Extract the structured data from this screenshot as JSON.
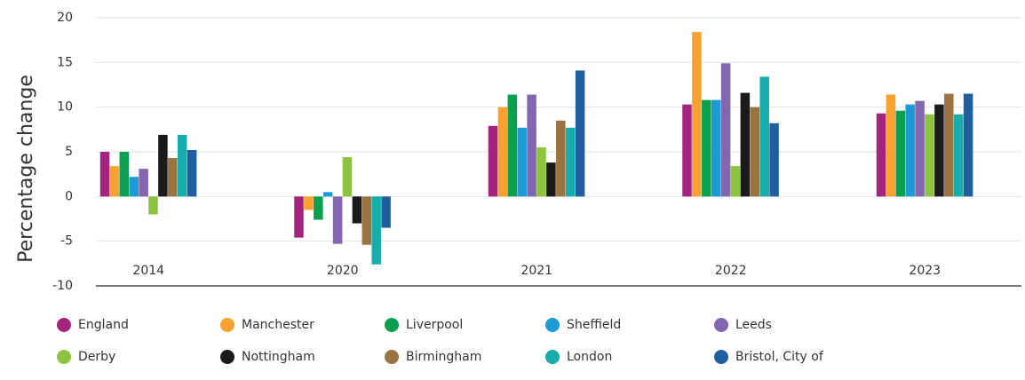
{
  "chart_data": {
    "type": "bar",
    "y_label": "Percentage change",
    "categories": [
      "2014",
      "2020",
      "2021",
      "2022",
      "2023"
    ],
    "series": [
      {
        "name": "England",
        "color": "#a3237f",
        "values": [
          5,
          -4.6,
          7.9,
          10.3,
          9.3
        ]
      },
      {
        "name": "Manchester",
        "color": "#f7a230",
        "values": [
          3.4,
          -1.5,
          10,
          18.4,
          11.4
        ]
      },
      {
        "name": "Liverpool",
        "color": "#0aa04f",
        "values": [
          5,
          -2.6,
          11.4,
          10.8,
          9.6
        ]
      },
      {
        "name": "Sheffield",
        "color": "#1b9ad6",
        "values": [
          2.2,
          0.5,
          7.7,
          10.8,
          10.3
        ]
      },
      {
        "name": "Leeds",
        "color": "#8366b0",
        "values": [
          3.1,
          -5.3,
          11.4,
          14.9,
          10.7
        ]
      },
      {
        "name": "Derby",
        "color": "#8cc43f",
        "values": [
          -2,
          4.4,
          5.5,
          3.4,
          9.2
        ]
      },
      {
        "name": "Nottingham",
        "color": "#1a1a1a",
        "values": [
          6.9,
          -3,
          3.8,
          11.6,
          10.3
        ]
      },
      {
        "name": "Birmingham",
        "color": "#9b7340",
        "values": [
          4.3,
          -5.4,
          8.5,
          10,
          11.5
        ]
      },
      {
        "name": "London",
        "color": "#16adac",
        "values": [
          6.9,
          -7.6,
          7.7,
          13.4,
          9.2
        ]
      },
      {
        "name": "Bristol, City of",
        "color": "#1f5fa0",
        "values": [
          5.2,
          -3.5,
          14.1,
          8.2,
          11.5
        ]
      }
    ],
    "ylim": [
      -10,
      20
    ],
    "yticks": [
      -10,
      -5,
      0,
      5,
      10,
      15,
      20
    ],
    "grid": true,
    "legend": "bottom"
  }
}
